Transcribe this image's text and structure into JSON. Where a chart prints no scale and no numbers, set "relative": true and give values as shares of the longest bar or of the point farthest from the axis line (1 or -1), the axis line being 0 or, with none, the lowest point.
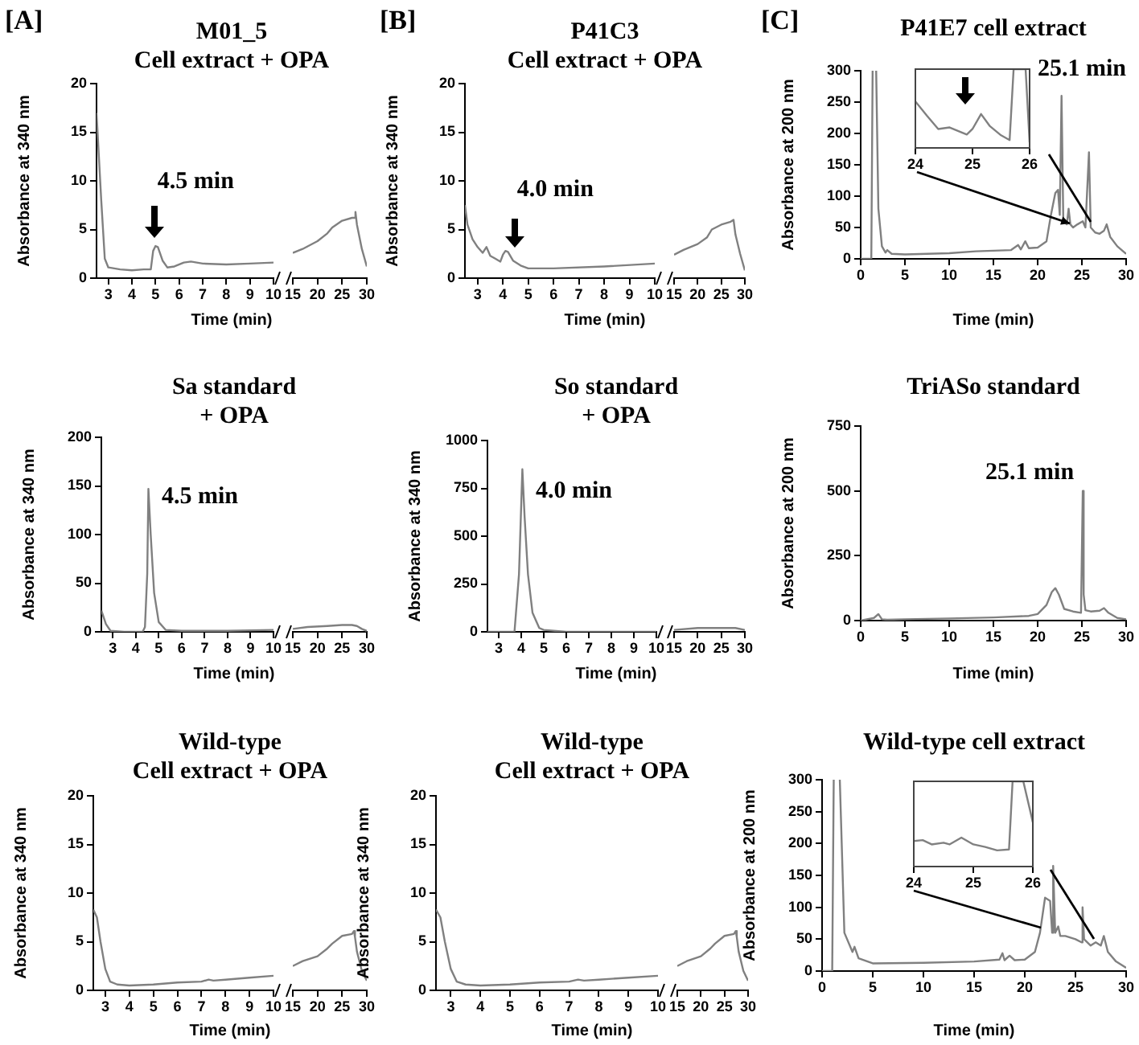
{
  "chart_data": [
    {
      "type": "line",
      "title": "M01_5",
      "subtitle": "Cell extract + OPA",
      "xlabel": "Time (min)",
      "ylabel": "Absorbance at 340 nm",
      "annotations": [
        "[A]",
        {
          "text": "4.5 min",
          "x": 5.0,
          "y": 3.3
        }
      ],
      "x": [
        2.5,
        2.7,
        2.85,
        3.0,
        3.5,
        4.0,
        4.5,
        4.8,
        4.9,
        5.0,
        5.1,
        5.3,
        5.5,
        5.8,
        6.2,
        6.5,
        7,
        8,
        9,
        10
      ],
      "values": [
        17,
        8,
        2,
        1.1,
        0.9,
        0.8,
        0.9,
        0.9,
        2.8,
        3.3,
        3.2,
        1.8,
        1.1,
        1.2,
        1.6,
        1.7,
        1.5,
        1.4,
        1.5,
        1.6
      ],
      "color": "#808080",
      "xlim": [
        2.5,
        10
      ],
      "xticks": [
        3,
        4,
        5,
        6,
        7,
        8,
        9,
        10
      ],
      "ylim": [
        0,
        20
      ],
      "yticks": [
        0,
        5,
        10,
        15,
        20
      ]
    },
    {
      "type": "line",
      "x": [
        15,
        17,
        20,
        22,
        23,
        25,
        27,
        27.5,
        27.7,
        28,
        29,
        30
      ],
      "values": [
        2.6,
        3.0,
        3.8,
        4.6,
        5.2,
        5.9,
        6.2,
        6.2,
        6.8,
        5.5,
        3,
        1.2
      ],
      "color": "#808080",
      "xlim": [
        15,
        30
      ],
      "xticks": [
        15,
        20,
        25,
        30
      ],
      "ylim": [
        0,
        20
      ],
      "tick_labels": "x"
    },
    {
      "type": "line",
      "title": "P41C3",
      "subtitle": "Cell extract + OPA",
      "xlabel": "Time (min)",
      "ylabel": "Absorbance at 340 nm",
      "annotations": [
        "[B]",
        {
          "text": "4.0 min",
          "x": 4.1,
          "y": 2.8
        }
      ],
      "x": [
        2.5,
        2.6,
        2.8,
        3.0,
        3.2,
        3.35,
        3.5,
        3.7,
        3.9,
        4.0,
        4.1,
        4.2,
        4.4,
        4.7,
        5.0,
        6,
        8,
        10
      ],
      "values": [
        7.5,
        5.5,
        4.0,
        3.2,
        2.6,
        3.2,
        2.3,
        2.0,
        1.7,
        2.4,
        2.8,
        2.7,
        1.8,
        1.3,
        1.0,
        1.0,
        1.2,
        1.5
      ],
      "color": "#808080",
      "xlim": [
        2.5,
        10
      ],
      "xticks": [
        3,
        4,
        5,
        6,
        7,
        8,
        9,
        10
      ],
      "ylim": [
        0,
        20
      ],
      "yticks": [
        0,
        5,
        10,
        15,
        20
      ]
    },
    {
      "type": "line",
      "x": [
        15,
        17,
        20,
        22,
        23,
        25,
        27,
        27.6,
        28,
        29,
        30
      ],
      "values": [
        2.4,
        2.9,
        3.5,
        4.2,
        5.0,
        5.5,
        5.8,
        6.0,
        4.5,
        2.5,
        0.8
      ],
      "color": "#808080",
      "xlim": [
        15,
        30
      ],
      "xticks": [
        15,
        20,
        25,
        30
      ],
      "ylim": [
        0,
        20
      ],
      "tick_labels": "x"
    },
    {
      "type": "line",
      "title": "P41E7 cell extract",
      "xlabel": "Time (min)",
      "ylabel": "Absorbance at 200 nm",
      "annotations": [
        "[C]",
        "25.1 min"
      ],
      "x": [
        0,
        1.2,
        1.35,
        1.55,
        1.75,
        2.0,
        2.4,
        2.8,
        3.0,
        3.5,
        5,
        10,
        13,
        17,
        17.8,
        18.1,
        18.6,
        19,
        20,
        21,
        21.5,
        22,
        22.3,
        22.5,
        22.7,
        22.9,
        23.3,
        23.5,
        23.7,
        24,
        24.5,
        25.1,
        25.4,
        25.8,
        26,
        26.5,
        27,
        27.5,
        27.8,
        28.2,
        29,
        30
      ],
      "values": [
        0,
        0,
        300,
        null,
        300,
        80,
        20,
        10,
        14,
        8,
        7,
        9,
        12,
        14,
        22,
        15,
        28,
        17,
        18,
        28,
        70,
        105,
        110,
        70,
        260,
        60,
        55,
        80,
        55,
        50,
        55,
        60,
        50,
        170,
        50,
        42,
        40,
        45,
        55,
        35,
        20,
        8
      ],
      "color": "#808080",
      "xlim": [
        0,
        30
      ],
      "xticks": [
        0,
        5,
        10,
        15,
        20,
        25,
        30
      ],
      "ylim": [
        0,
        300
      ],
      "yticks": [
        0,
        50,
        100,
        150,
        200,
        250,
        300
      ]
    },
    {
      "type": "line",
      "relative": true,
      "x": [
        24,
        24.2,
        24.4,
        24.6,
        24.9,
        25.0,
        25.15,
        25.3,
        25.5,
        25.65,
        25.72,
        25.93,
        26
      ],
      "values": [
        0.59,
        0.41,
        0.24,
        0.26,
        0.17,
        0.24,
        0.43,
        0.28,
        0.16,
        0.1,
        1,
        1,
        0.07
      ],
      "color": "#808080",
      "xlim": [
        24,
        26
      ],
      "xticks": [
        24,
        25,
        26
      ],
      "tick_labels": "x"
    },
    {
      "type": "line",
      "title": "Sa standard",
      "subtitle": "+ OPA",
      "xlabel": "Time (min)",
      "ylabel": "Absorbance at 340 nm",
      "annotations": [
        {
          "text": "4.5 min",
          "x": 4.55,
          "y": 147
        }
      ],
      "x": [
        2.5,
        2.7,
        2.9,
        3.5,
        4.3,
        4.4,
        4.5,
        4.55,
        4.65,
        4.8,
        5.0,
        5.3,
        6,
        8,
        10
      ],
      "values": [
        22,
        8,
        1,
        0,
        0,
        5,
        60,
        147,
        100,
        40,
        10,
        2,
        1,
        1,
        2
      ],
      "color": "#808080",
      "xlim": [
        2.5,
        10
      ],
      "xticks": [
        3,
        4,
        5,
        6,
        7,
        8,
        9,
        10
      ],
      "ylim": [
        0,
        200
      ],
      "yticks": [
        0,
        50,
        100,
        150,
        200
      ]
    },
    {
      "type": "line",
      "x": [
        15,
        18,
        22,
        25,
        27,
        28,
        29,
        30
      ],
      "values": [
        3,
        5,
        6,
        7,
        7,
        6,
        3,
        1
      ],
      "color": "#808080",
      "xlim": [
        15,
        30
      ],
      "xticks": [
        15,
        20,
        25,
        30
      ],
      "ylim": [
        0,
        200
      ],
      "tick_labels": "x"
    },
    {
      "type": "line",
      "title": "So standard",
      "subtitle": "+ OPA",
      "xlabel": "Time (min)",
      "ylabel": "Absorbance at 340 nm",
      "annotations": [
        {
          "text": "4.0 min",
          "x": 4.05,
          "y": 850
        }
      ],
      "x": [
        2.5,
        3.5,
        3.7,
        3.9,
        4.05,
        4.15,
        4.3,
        4.5,
        4.8,
        5.0,
        6,
        10
      ],
      "values": [
        0,
        0,
        0,
        300,
        850,
        600,
        300,
        100,
        20,
        10,
        0,
        0
      ],
      "color": "#808080",
      "xlim": [
        2.5,
        10
      ],
      "xticks": [
        3,
        4,
        5,
        6,
        7,
        8,
        9,
        10
      ],
      "ylim": [
        0,
        1000
      ],
      "yticks": [
        0,
        250,
        500,
        750,
        1000
      ]
    },
    {
      "type": "line",
      "x": [
        15,
        20,
        25,
        28,
        30
      ],
      "values": [
        10,
        20,
        20,
        20,
        10
      ],
      "color": "#808080",
      "xlim": [
        15,
        30
      ],
      "xticks": [
        15,
        20,
        25,
        30
      ],
      "ylim": [
        0,
        1000
      ],
      "tick_labels": "x"
    },
    {
      "type": "line",
      "title": "TriASo  standard",
      "xlabel": "Time (min)",
      "ylabel": "Absorbance at 200 nm",
      "annotations": [
        {
          "text": "25.1 min",
          "x": 25.1,
          "y": 500
        }
      ],
      "x": [
        0,
        1.5,
        2.0,
        2.4,
        3,
        5,
        10,
        15,
        19,
        20,
        21,
        21.6,
        22,
        22.4,
        23,
        24,
        24.9,
        25.1,
        25.2,
        25.4,
        26,
        27,
        27.5,
        28,
        29,
        30
      ],
      "values": [
        0,
        10,
        25,
        5,
        3,
        5,
        8,
        12,
        18,
        25,
        60,
        110,
        125,
        100,
        45,
        35,
        30,
        500,
        100,
        40,
        35,
        38,
        48,
        30,
        10,
        5
      ],
      "color": "#808080",
      "xlim": [
        0,
        30
      ],
      "xticks": [
        0,
        5,
        10,
        15,
        20,
        25,
        30
      ],
      "ylim": [
        0,
        750
      ],
      "yticks": [
        0,
        250,
        500,
        750
      ]
    },
    {
      "type": "line",
      "title": "Wild-type",
      "subtitle": "Cell extract + OPA",
      "xlabel": "Time (min)",
      "ylabel": "Absorbance at 340 nm",
      "x": [
        2.5,
        2.65,
        2.8,
        3.0,
        3.2,
        3.5,
        4,
        5,
        6,
        7,
        7.3,
        7.5,
        8,
        9,
        10
      ],
      "values": [
        8.3,
        7.5,
        5,
        2.2,
        0.9,
        0.6,
        0.5,
        0.6,
        0.8,
        0.9,
        1.1,
        1.0,
        1.1,
        1.3,
        1.5
      ],
      "color": "#808080",
      "xlim": [
        2.5,
        10
      ],
      "xticks": [
        3,
        4,
        5,
        6,
        7,
        8,
        9,
        10
      ],
      "ylim": [
        0,
        20
      ],
      "yticks": [
        0,
        5,
        10,
        15,
        20
      ]
    },
    {
      "type": "line",
      "x": [
        15,
        17,
        20,
        22,
        23,
        25,
        27,
        27.4,
        27.6,
        28,
        29,
        30
      ],
      "values": [
        2.5,
        3.0,
        3.5,
        4.3,
        4.8,
        5.6,
        5.8,
        6.1,
        5.5,
        4,
        2,
        1
      ],
      "color": "#808080",
      "xlim": [
        15,
        30
      ],
      "xticks": [
        15,
        20,
        25,
        30
      ],
      "ylim": [
        0,
        20
      ],
      "tick_labels": "x"
    },
    {
      "type": "line",
      "title": "Wild-type",
      "subtitle": "Cell extract + OPA",
      "xlabel": "Time (min)",
      "ylabel": "Absorbance at 340 nm",
      "x": [
        2.5,
        2.65,
        2.8,
        3.0,
        3.2,
        3.5,
        4,
        5,
        6,
        7,
        7.3,
        7.5,
        8,
        9,
        10
      ],
      "values": [
        8.3,
        7.5,
        5,
        2.2,
        0.9,
        0.6,
        0.5,
        0.6,
        0.8,
        0.9,
        1.1,
        1.0,
        1.1,
        1.3,
        1.5
      ],
      "color": "#808080",
      "xlim": [
        2.5,
        10
      ],
      "xticks": [
        3,
        4,
        5,
        6,
        7,
        8,
        9,
        10
      ],
      "ylim": [
        0,
        20
      ],
      "yticks": [
        0,
        5,
        10,
        15,
        20
      ]
    },
    {
      "type": "line",
      "x": [
        15,
        17,
        20,
        22,
        23,
        25,
        27,
        27.4,
        27.6,
        28,
        29,
        30
      ],
      "values": [
        2.5,
        3.0,
        3.5,
        4.3,
        4.8,
        5.6,
        5.8,
        6.1,
        5.5,
        4,
        2,
        1
      ],
      "color": "#808080",
      "xlim": [
        15,
        30
      ],
      "xticks": [
        15,
        20,
        25,
        30
      ],
      "ylim": [
        0,
        20
      ],
      "tick_labels": "x"
    },
    {
      "type": "line",
      "title": "Wild-type cell extract",
      "xlabel": "Time (min)",
      "ylabel": "Absorbance at 200 nm",
      "x": [
        0,
        1.0,
        1.15,
        1.45,
        1.75,
        2.2,
        3.0,
        3.2,
        3.6,
        5,
        10,
        15,
        17.5,
        17.8,
        18,
        18.5,
        19,
        20,
        21,
        21.5,
        22,
        22.5,
        22.7,
        22.8,
        23,
        23.3,
        23.5,
        24,
        25,
        25.6,
        25.7,
        25.85,
        26.5,
        27,
        27.5,
        27.8,
        28.2,
        29,
        30
      ],
      "values": [
        0,
        0,
        300,
        null,
        300,
        60,
        30,
        38,
        20,
        12,
        13,
        15,
        18,
        28,
        17,
        24,
        17,
        18,
        30,
        60,
        115,
        110,
        60,
        165,
        60,
        70,
        55,
        55,
        50,
        45,
        100,
        50,
        40,
        45,
        40,
        55,
        30,
        15,
        5
      ],
      "color": "#808080",
      "xlim": [
        0,
        30
      ],
      "xticks": [
        0,
        5,
        10,
        15,
        20,
        25,
        30
      ],
      "ylim": [
        0,
        300
      ],
      "yticks": [
        0,
        50,
        100,
        150,
        200,
        250,
        300
      ]
    },
    {
      "type": "line",
      "relative": true,
      "x": [
        24,
        24.15,
        24.3,
        24.5,
        24.6,
        24.8,
        25.0,
        25.2,
        25.4,
        25.6,
        25.66,
        25.84,
        26
      ],
      "values": [
        0.3,
        0.31,
        0.26,
        0.28,
        0.26,
        0.34,
        0.26,
        0.23,
        0.19,
        0.2,
        1,
        1,
        0.52
      ],
      "color": "#808080",
      "xlim": [
        24,
        26
      ],
      "xticks": [
        24,
        25,
        26
      ],
      "tick_labels": "x"
    }
  ]
}
